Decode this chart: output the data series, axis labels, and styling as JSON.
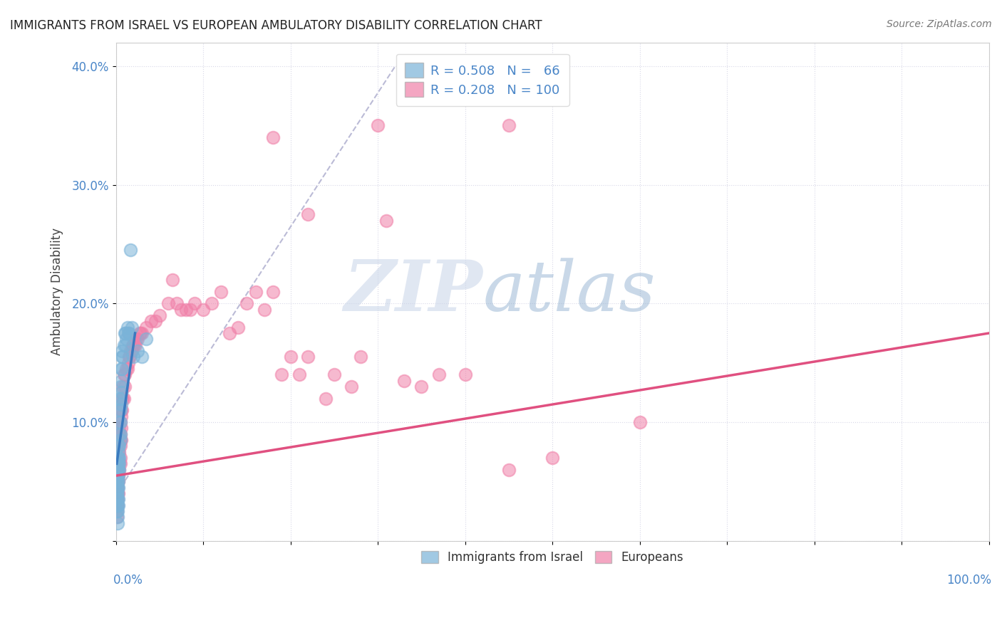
{
  "title": "IMMIGRANTS FROM ISRAEL VS EUROPEAN AMBULATORY DISABILITY CORRELATION CHART",
  "source": "Source: ZipAtlas.com",
  "ylabel": "Ambulatory Disability",
  "legend_labels_bottom": [
    "Immigrants from Israel",
    "Europeans"
  ],
  "israel_color": "#7ab3d8",
  "european_color": "#f080a8",
  "israel_line_color": "#3a7abf",
  "european_line_color": "#e05080",
  "watermark_zip": "ZIP",
  "watermark_atlas": "atlas",
  "background_color": "#ffffff",
  "grid_color": "#d8d8e8",
  "xlim": [
    0.0,
    1.0
  ],
  "ylim": [
    0.0,
    0.42
  ],
  "title_fontsize": 12,
  "tick_fontsize": 12,
  "israel_points": [
    [
      0.001,
      0.05
    ],
    [
      0.001,
      0.06
    ],
    [
      0.001,
      0.055
    ],
    [
      0.001,
      0.045
    ],
    [
      0.001,
      0.04
    ],
    [
      0.001,
      0.035
    ],
    [
      0.001,
      0.03
    ],
    [
      0.001,
      0.025
    ],
    [
      0.002,
      0.07
    ],
    [
      0.002,
      0.065
    ],
    [
      0.002,
      0.06
    ],
    [
      0.002,
      0.055
    ],
    [
      0.002,
      0.05
    ],
    [
      0.002,
      0.045
    ],
    [
      0.002,
      0.04
    ],
    [
      0.002,
      0.035
    ],
    [
      0.002,
      0.03
    ],
    [
      0.002,
      0.025
    ],
    [
      0.002,
      0.02
    ],
    [
      0.002,
      0.015
    ],
    [
      0.003,
      0.08
    ],
    [
      0.003,
      0.075
    ],
    [
      0.003,
      0.07
    ],
    [
      0.003,
      0.065
    ],
    [
      0.003,
      0.06
    ],
    [
      0.003,
      0.055
    ],
    [
      0.003,
      0.05
    ],
    [
      0.003,
      0.045
    ],
    [
      0.003,
      0.035
    ],
    [
      0.003,
      0.03
    ],
    [
      0.004,
      0.12
    ],
    [
      0.004,
      0.11
    ],
    [
      0.004,
      0.1
    ],
    [
      0.004,
      0.09
    ],
    [
      0.004,
      0.08
    ],
    [
      0.004,
      0.07
    ],
    [
      0.004,
      0.065
    ],
    [
      0.004,
      0.06
    ],
    [
      0.005,
      0.13
    ],
    [
      0.005,
      0.12
    ],
    [
      0.005,
      0.11
    ],
    [
      0.005,
      0.1
    ],
    [
      0.005,
      0.09
    ],
    [
      0.005,
      0.085
    ],
    [
      0.006,
      0.145
    ],
    [
      0.006,
      0.135
    ],
    [
      0.006,
      0.125
    ],
    [
      0.006,
      0.115
    ],
    [
      0.007,
      0.155
    ],
    [
      0.007,
      0.145
    ],
    [
      0.007,
      0.16
    ],
    [
      0.008,
      0.155
    ],
    [
      0.009,
      0.165
    ],
    [
      0.01,
      0.175
    ],
    [
      0.011,
      0.175
    ],
    [
      0.011,
      0.165
    ],
    [
      0.012,
      0.17
    ],
    [
      0.013,
      0.18
    ],
    [
      0.014,
      0.175
    ],
    [
      0.015,
      0.175
    ],
    [
      0.017,
      0.245
    ],
    [
      0.018,
      0.18
    ],
    [
      0.02,
      0.155
    ],
    [
      0.025,
      0.16
    ],
    [
      0.03,
      0.155
    ],
    [
      0.035,
      0.17
    ]
  ],
  "european_points": [
    [
      0.001,
      0.05
    ],
    [
      0.001,
      0.055
    ],
    [
      0.001,
      0.045
    ],
    [
      0.001,
      0.04
    ],
    [
      0.001,
      0.035
    ],
    [
      0.001,
      0.03
    ],
    [
      0.001,
      0.025
    ],
    [
      0.001,
      0.02
    ],
    [
      0.002,
      0.065
    ],
    [
      0.002,
      0.06
    ],
    [
      0.002,
      0.055
    ],
    [
      0.002,
      0.05
    ],
    [
      0.002,
      0.045
    ],
    [
      0.002,
      0.04
    ],
    [
      0.002,
      0.035
    ],
    [
      0.002,
      0.03
    ],
    [
      0.003,
      0.08
    ],
    [
      0.003,
      0.075
    ],
    [
      0.003,
      0.07
    ],
    [
      0.003,
      0.065
    ],
    [
      0.003,
      0.06
    ],
    [
      0.003,
      0.055
    ],
    [
      0.003,
      0.05
    ],
    [
      0.003,
      0.04
    ],
    [
      0.004,
      0.095
    ],
    [
      0.004,
      0.09
    ],
    [
      0.004,
      0.085
    ],
    [
      0.004,
      0.075
    ],
    [
      0.004,
      0.065
    ],
    [
      0.004,
      0.06
    ],
    [
      0.005,
      0.1
    ],
    [
      0.005,
      0.09
    ],
    [
      0.005,
      0.085
    ],
    [
      0.005,
      0.08
    ],
    [
      0.005,
      0.07
    ],
    [
      0.005,
      0.065
    ],
    [
      0.006,
      0.11
    ],
    [
      0.006,
      0.105
    ],
    [
      0.006,
      0.095
    ],
    [
      0.006,
      0.085
    ],
    [
      0.007,
      0.12
    ],
    [
      0.007,
      0.11
    ],
    [
      0.008,
      0.13
    ],
    [
      0.008,
      0.12
    ],
    [
      0.009,
      0.14
    ],
    [
      0.009,
      0.12
    ],
    [
      0.01,
      0.14
    ],
    [
      0.01,
      0.13
    ],
    [
      0.012,
      0.145
    ],
    [
      0.013,
      0.145
    ],
    [
      0.014,
      0.15
    ],
    [
      0.015,
      0.155
    ],
    [
      0.016,
      0.155
    ],
    [
      0.017,
      0.16
    ],
    [
      0.018,
      0.16
    ],
    [
      0.019,
      0.165
    ],
    [
      0.02,
      0.165
    ],
    [
      0.021,
      0.165
    ],
    [
      0.022,
      0.165
    ],
    [
      0.023,
      0.17
    ],
    [
      0.025,
      0.17
    ],
    [
      0.027,
      0.175
    ],
    [
      0.028,
      0.175
    ],
    [
      0.03,
      0.175
    ],
    [
      0.035,
      0.18
    ],
    [
      0.04,
      0.185
    ],
    [
      0.045,
      0.185
    ],
    [
      0.05,
      0.19
    ],
    [
      0.06,
      0.2
    ],
    [
      0.065,
      0.22
    ],
    [
      0.07,
      0.2
    ],
    [
      0.075,
      0.195
    ],
    [
      0.08,
      0.195
    ],
    [
      0.085,
      0.195
    ],
    [
      0.09,
      0.2
    ],
    [
      0.1,
      0.195
    ],
    [
      0.11,
      0.2
    ],
    [
      0.12,
      0.21
    ],
    [
      0.13,
      0.175
    ],
    [
      0.14,
      0.18
    ],
    [
      0.15,
      0.2
    ],
    [
      0.16,
      0.21
    ],
    [
      0.17,
      0.195
    ],
    [
      0.18,
      0.21
    ],
    [
      0.19,
      0.14
    ],
    [
      0.2,
      0.155
    ],
    [
      0.21,
      0.14
    ],
    [
      0.22,
      0.155
    ],
    [
      0.24,
      0.12
    ],
    [
      0.25,
      0.14
    ],
    [
      0.27,
      0.13
    ],
    [
      0.28,
      0.155
    ],
    [
      0.3,
      0.35
    ],
    [
      0.31,
      0.27
    ],
    [
      0.33,
      0.135
    ],
    [
      0.35,
      0.13
    ],
    [
      0.37,
      0.14
    ],
    [
      0.4,
      0.14
    ],
    [
      0.45,
      0.06
    ],
    [
      0.5,
      0.07
    ],
    [
      0.18,
      0.34
    ],
    [
      0.22,
      0.275
    ],
    [
      0.45,
      0.35
    ],
    [
      0.6,
      0.1
    ]
  ],
  "israel_line": [
    [
      0.001,
      0.065
    ],
    [
      0.022,
      0.175
    ]
  ],
  "european_line": [
    [
      0.001,
      0.055
    ],
    [
      1.0,
      0.175
    ]
  ],
  "dashed_line": [
    [
      0.001,
      0.04
    ],
    [
      0.32,
      0.4
    ]
  ]
}
